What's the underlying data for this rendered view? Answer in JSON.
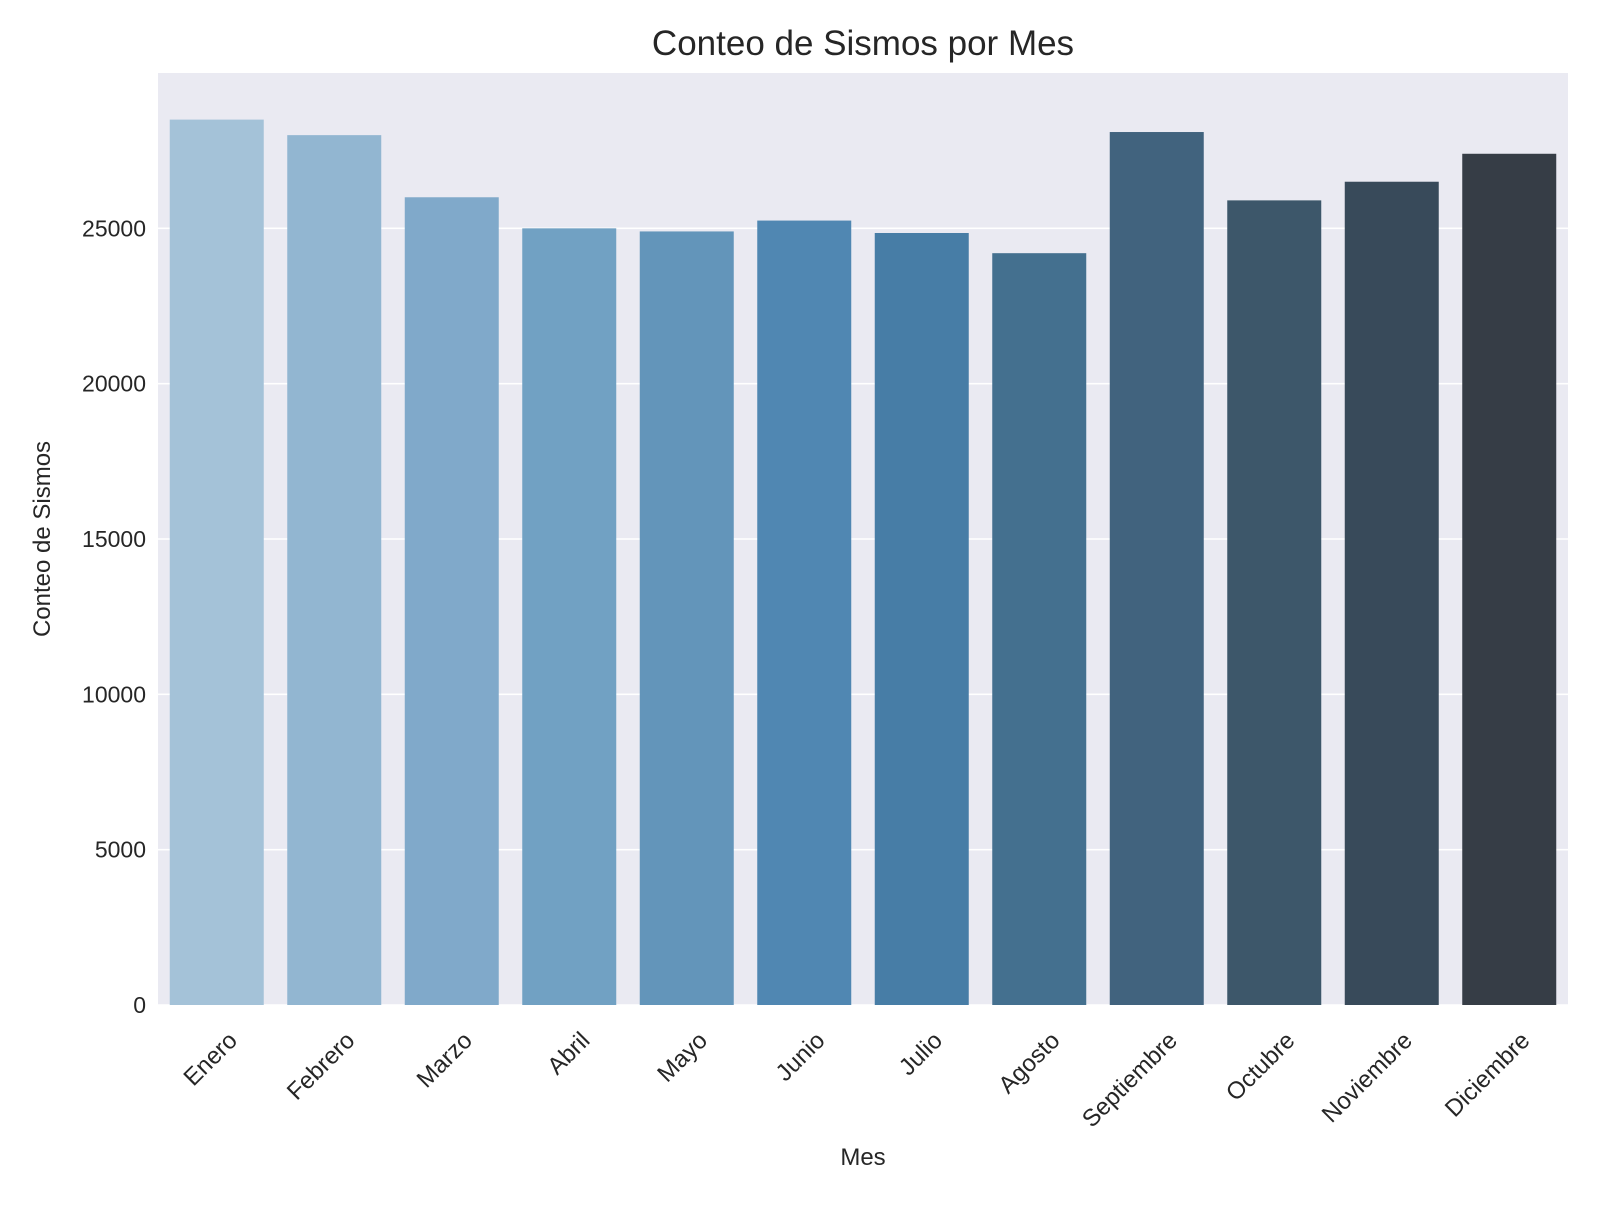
{
  "chart_data": {
    "type": "bar",
    "title": "Conteo de Sismos por Mes",
    "xlabel": "Mes",
    "ylabel": "Conteo de Sismos",
    "categories": [
      "Enero",
      "Febrero",
      "Marzo",
      "Abril",
      "Mayo",
      "Junio",
      "Julio",
      "Agosto",
      "Septiembre",
      "Octubre",
      "Noviembre",
      "Diciembre"
    ],
    "values": [
      28500,
      28000,
      26000,
      25000,
      24900,
      25250,
      24850,
      24200,
      28100,
      25900,
      26500,
      27400
    ],
    "colors": [
      "#a4c2d8",
      "#92b6d1",
      "#80a9ca",
      "#71a1c3",
      "#6395ba",
      "#5087b2",
      "#477da6",
      "#44708f",
      "#41637e",
      "#3d576a",
      "#384a5a",
      "#363d46"
    ],
    "ylim": [
      0,
      30000
    ],
    "yticks": [
      0,
      5000,
      10000,
      15000,
      20000,
      25000
    ],
    "grid": true,
    "legend": "none",
    "plot_background": "#eaeaf2",
    "grid_color": "#ffffff"
  }
}
